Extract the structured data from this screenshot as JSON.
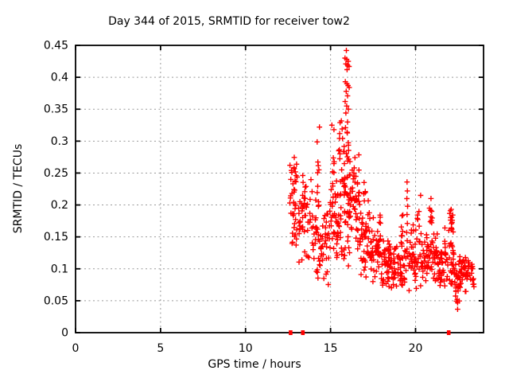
{
  "figure": {
    "background": "#ffffff",
    "text_color": "#000000"
  },
  "chart_data": {
    "type": "scatter",
    "title": "Day 344 of 2015, SRMTID for receiver tow2",
    "xlabel": "GPS time / hours",
    "ylabel": "SRMTID / TECUs",
    "xlim": [
      0,
      24
    ],
    "ylim": [
      0,
      0.45
    ],
    "xticks": {
      "values": [
        0,
        5,
        10,
        15,
        20
      ],
      "labels": [
        "0",
        "5",
        "10",
        "15",
        "20"
      ]
    },
    "yticks": {
      "values": [
        0,
        0.05,
        0.1,
        0.15,
        0.2,
        0.25,
        0.3,
        0.35,
        0.4,
        0.45
      ],
      "labels": [
        "0",
        "0.05",
        "0.1",
        "0.15",
        "0.2",
        "0.25",
        "0.3",
        "0.35",
        "0.4",
        "0.45"
      ]
    },
    "grid": true,
    "grid_color": "#999999",
    "marker": "plus",
    "marker_color": "#ff0000",
    "data_x_range": [
      12.6,
      23.6
    ],
    "seed": 7,
    "zero_marker_x": [
      12.65,
      13.37,
      21.95
    ],
    "spike_points": [
      [
        15.93,
        0.442
      ],
      [
        15.85,
        0.43
      ],
      [
        15.95,
        0.428
      ],
      [
        16.04,
        0.425
      ],
      [
        15.9,
        0.421
      ],
      [
        16.0,
        0.419
      ],
      [
        16.09,
        0.417
      ],
      [
        15.97,
        0.412
      ],
      [
        15.87,
        0.393
      ],
      [
        15.96,
        0.39
      ],
      [
        16.03,
        0.387
      ],
      [
        16.1,
        0.384
      ],
      [
        15.92,
        0.378
      ],
      [
        16.0,
        0.371
      ],
      [
        15.86,
        0.362
      ],
      [
        15.95,
        0.355
      ],
      [
        16.05,
        0.35
      ],
      [
        15.9,
        0.344
      ],
      [
        16.0,
        0.33
      ],
      [
        15.88,
        0.321
      ],
      [
        15.97,
        0.314
      ],
      [
        14.35,
        0.322
      ],
      [
        15.08,
        0.325
      ],
      [
        15.2,
        0.318
      ],
      [
        19.5,
        0.236
      ],
      [
        19.52,
        0.222
      ],
      [
        19.49,
        0.21
      ],
      [
        19.53,
        0.198
      ],
      [
        19.5,
        0.185
      ],
      [
        19.52,
        0.171
      ],
      [
        19.48,
        0.157
      ],
      [
        19.51,
        0.144
      ],
      [
        19.5,
        0.131
      ],
      [
        19.53,
        0.119
      ],
      [
        20.3,
        0.215
      ]
    ],
    "clusters": [
      [
        12.6,
        13.05,
        40,
        0.12,
        0.28
      ],
      [
        13.05,
        13.6,
        38,
        0.1,
        0.26
      ],
      [
        13.6,
        14.35,
        42,
        0.08,
        0.25
      ],
      [
        14.18,
        14.32,
        6,
        0.22,
        0.305
      ],
      [
        14.35,
        14.95,
        38,
        0.06,
        0.205
      ],
      [
        14.95,
        15.45,
        45,
        0.09,
        0.28
      ],
      [
        15.45,
        15.85,
        35,
        0.1,
        0.31
      ],
      [
        15.5,
        15.75,
        5,
        0.3,
        0.37
      ],
      [
        15.8,
        16.25,
        50,
        0.07,
        0.33
      ],
      [
        16.25,
        16.7,
        40,
        0.12,
        0.3
      ],
      [
        16.7,
        17.3,
        45,
        0.08,
        0.22
      ],
      [
        16.95,
        17.1,
        4,
        0.2,
        0.25
      ],
      [
        17.3,
        18.0,
        50,
        0.07,
        0.19
      ],
      [
        17.85,
        17.97,
        4,
        0.16,
        0.21
      ],
      [
        18.0,
        18.7,
        55,
        0.06,
        0.16
      ],
      [
        18.7,
        19.45,
        50,
        0.06,
        0.16
      ],
      [
        19.15,
        19.3,
        6,
        0.14,
        0.205
      ],
      [
        19.6,
        20.5,
        55,
        0.06,
        0.17
      ],
      [
        20.1,
        20.4,
        6,
        0.15,
        0.2
      ],
      [
        20.5,
        21.3,
        55,
        0.07,
        0.17
      ],
      [
        20.82,
        20.98,
        9,
        0.15,
        0.22
      ],
      [
        21.3,
        21.7,
        28,
        0.06,
        0.14
      ],
      [
        21.7,
        22.25,
        45,
        0.07,
        0.19
      ],
      [
        21.95,
        22.2,
        5,
        0.16,
        0.21
      ],
      [
        22.25,
        22.6,
        32,
        0.035,
        0.14
      ],
      [
        22.6,
        23.2,
        40,
        0.06,
        0.13
      ],
      [
        23.2,
        23.6,
        14,
        0.05,
        0.12
      ]
    ]
  }
}
